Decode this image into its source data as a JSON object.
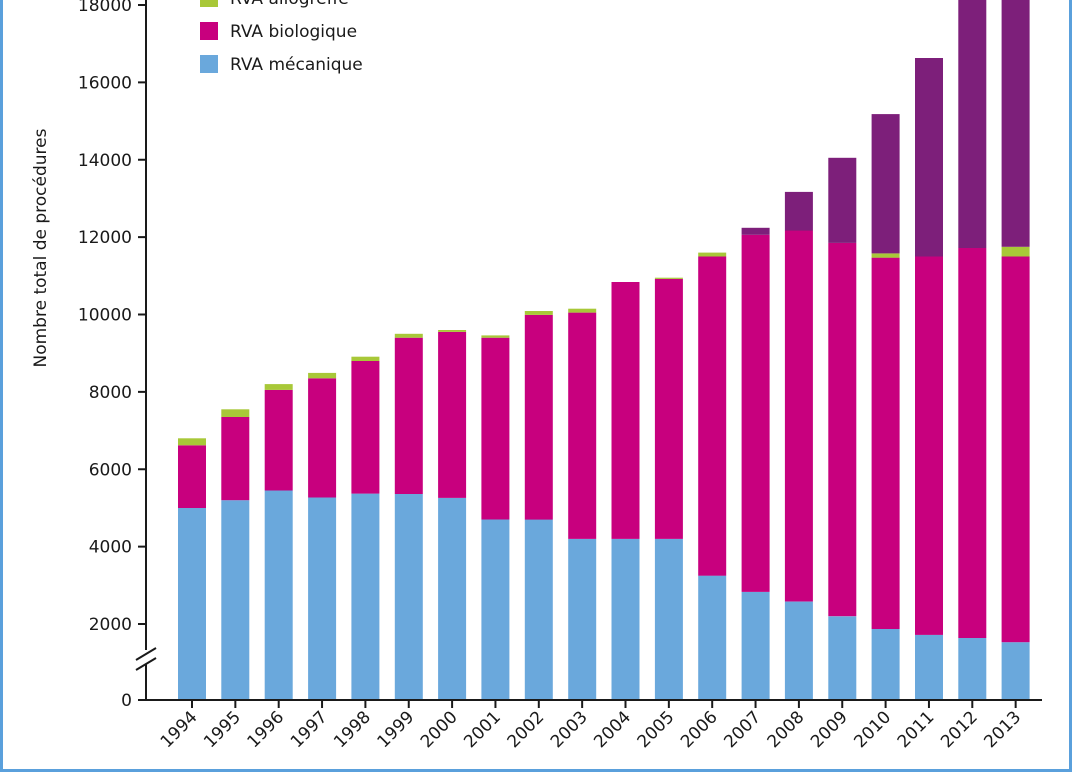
{
  "chart_data": {
    "type": "bar",
    "stacked": true,
    "title": "",
    "xlabel": "",
    "ylabel": "Nombre total de procédures",
    "ylim": [
      0,
      18000
    ],
    "y_ticks": [
      0,
      2000,
      4000,
      6000,
      8000,
      10000,
      12000,
      14000,
      16000,
      18000
    ],
    "y_tick_labels": [
      "0",
      "2000",
      "4000",
      "6000",
      "8000",
      "10000",
      "12000",
      "14000",
      "16000",
      "18000"
    ],
    "axis_break": true,
    "grid": false,
    "legend_position": "top-left",
    "categories": [
      "1994",
      "1995",
      "1996",
      "1997",
      "1998",
      "1999",
      "2000",
      "2001",
      "2002",
      "2003",
      "2004",
      "2005",
      "2006",
      "2007",
      "2008",
      "2009",
      "2010",
      "2011",
      "2012",
      "2013"
    ],
    "series": [
      {
        "name": "RVA mécanique",
        "color": "#6aa8dc",
        "values": [
          5000,
          5200,
          5450,
          5270,
          5370,
          5360,
          5260,
          4700,
          4700,
          4200,
          4200,
          4200,
          3250,
          2830,
          2580,
          2200,
          1870,
          1720,
          1640,
          1530
        ]
      },
      {
        "name": "RVA biologique",
        "color": "#c8007e",
        "values": [
          1620,
          2150,
          2600,
          3080,
          3430,
          4040,
          4290,
          4700,
          5290,
          5850,
          6640,
          6720,
          8250,
          9230,
          9590,
          9650,
          9600,
          9780,
          10080,
          9970
        ]
      },
      {
        "name": "RVA allogreffe",
        "color": "#a8c838",
        "values": [
          180,
          200,
          150,
          140,
          110,
          100,
          50,
          60,
          100,
          100,
          0,
          30,
          100,
          0,
          0,
          0,
          110,
          0,
          0,
          250
        ]
      },
      {
        "name": "",
        "color": "#7d1f7a",
        "values": [
          0,
          0,
          0,
          0,
          0,
          0,
          0,
          0,
          0,
          0,
          0,
          0,
          0,
          180,
          1000,
          2200,
          3600,
          5130,
          6500,
          6500
        ]
      }
    ]
  },
  "legend": {
    "items": [
      {
        "label": "RVA allogreffe",
        "color": "#a8c838"
      },
      {
        "label": "RVA biologique",
        "color": "#c8007e"
      },
      {
        "label": "RVA mécanique",
        "color": "#6aa8dc"
      }
    ]
  },
  "colors": {
    "frame": "#5aa0dc",
    "axis": "#1a1a1a"
  }
}
